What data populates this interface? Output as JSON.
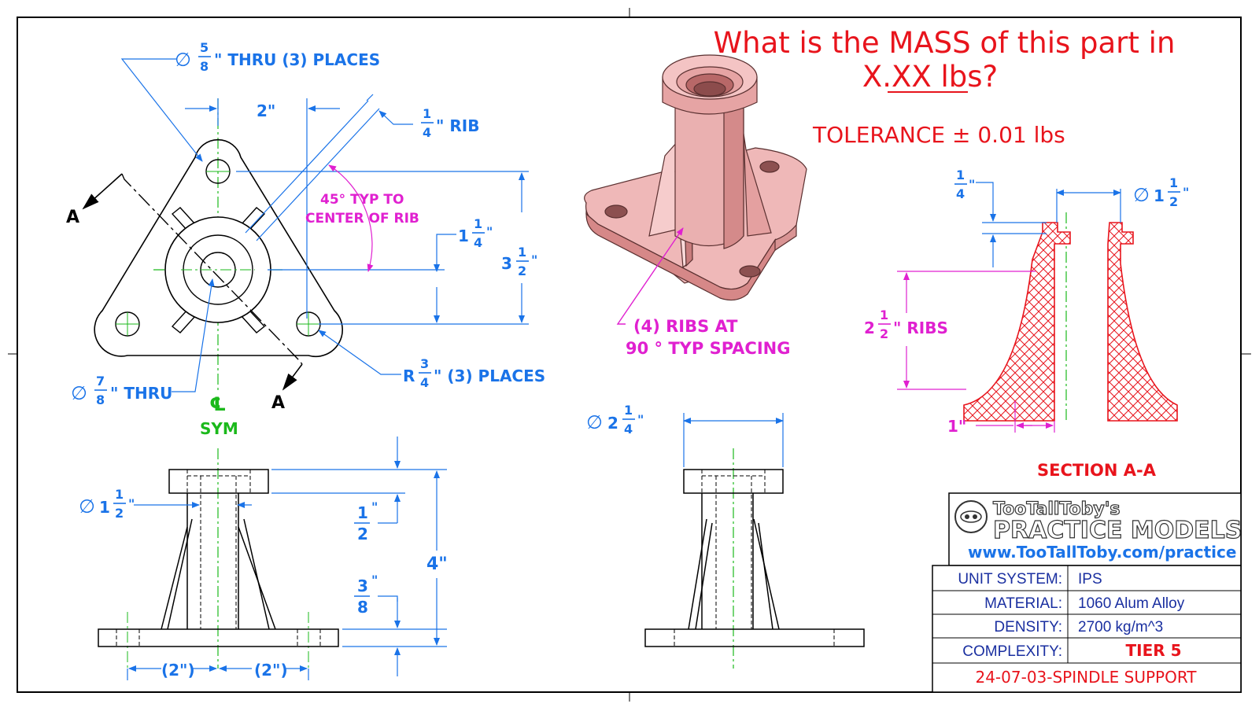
{
  "question": {
    "line1": "What is the MASS of this part in",
    "line2": "X.XX lbs?",
    "tolerance": "TOLERANCE ± 0.01 lbs"
  },
  "top_view": {
    "hole_5_8_num": "5",
    "hole_5_8_den": "8",
    "hole_5_8_text": "\" THRU (3) PLACES",
    "dim_2": "2\"",
    "rib_num": "1",
    "rib_den": "4",
    "rib_text": "\" RIB",
    "angle_line1": "45° TYP TO",
    "angle_line2": "CENTER OF RIB",
    "dim_1_1_4_whole": "1",
    "dim_1_1_4_num": "1",
    "dim_1_1_4_den": "4",
    "dim_3_1_2_whole": "3",
    "dim_3_1_2_num": "1",
    "dim_3_1_2_den": "2",
    "hole_7_8_num": "7",
    "hole_7_8_den": "8",
    "hole_7_8_text": "\" THRU",
    "radius_prefix": "R",
    "radius_num": "3",
    "radius_den": "4",
    "radius_text": "\" (3) PLACES",
    "section_mark": "A",
    "cl": "℄",
    "sym": "SYM"
  },
  "iso_view": {
    "ribs_line1": "(4) RIBS AT",
    "ribs_line2": "90 ° TYP SPACING"
  },
  "section": {
    "title": "SECTION A-A",
    "dim_1_4_num": "1",
    "dim_1_4_den": "4",
    "dia_1_1_2_whole": "1",
    "dia_1_1_2_num": "1",
    "dia_1_1_2_den": "2",
    "ribs_whole": "2",
    "ribs_num": "1",
    "ribs_den": "2",
    "ribs_text": "\" RIBS",
    "dim_1": "1\""
  },
  "front_view": {
    "dia_whole": "1",
    "dia_num": "1",
    "dia_den": "2",
    "half_num": "1",
    "half_den": "2",
    "three_eighths_num": "3",
    "three_eighths_den": "8",
    "dim_4": "4\"",
    "dim_2_left": "(2\")",
    "dim_2_right": "(2\")"
  },
  "side_view": {
    "dia_whole": "2",
    "dia_num": "1",
    "dia_den": "4"
  },
  "title_block": {
    "brand_line1": "TooTallToby's",
    "brand_line2": "PRACTICE MODELS",
    "url": "www.TooTallToby.com/practice",
    "rows": [
      {
        "label": "UNIT SYSTEM:",
        "value": "IPS"
      },
      {
        "label": "MATERIAL:",
        "value": "1060 Alum Alloy"
      },
      {
        "label": "DENSITY:",
        "value": "2700 kg/m^3"
      },
      {
        "label": "COMPLEXITY:",
        "value": "TIER 5"
      }
    ],
    "part_name": "24-07-03-SPINDLE SUPPORT"
  },
  "colors": {
    "dimension": "#1a73e8",
    "annotation": "#e020d0",
    "question": "#e8141c",
    "centerline": "#1bb91b",
    "part_fill": "#eaa8a8",
    "hatch": "#e8141c"
  }
}
